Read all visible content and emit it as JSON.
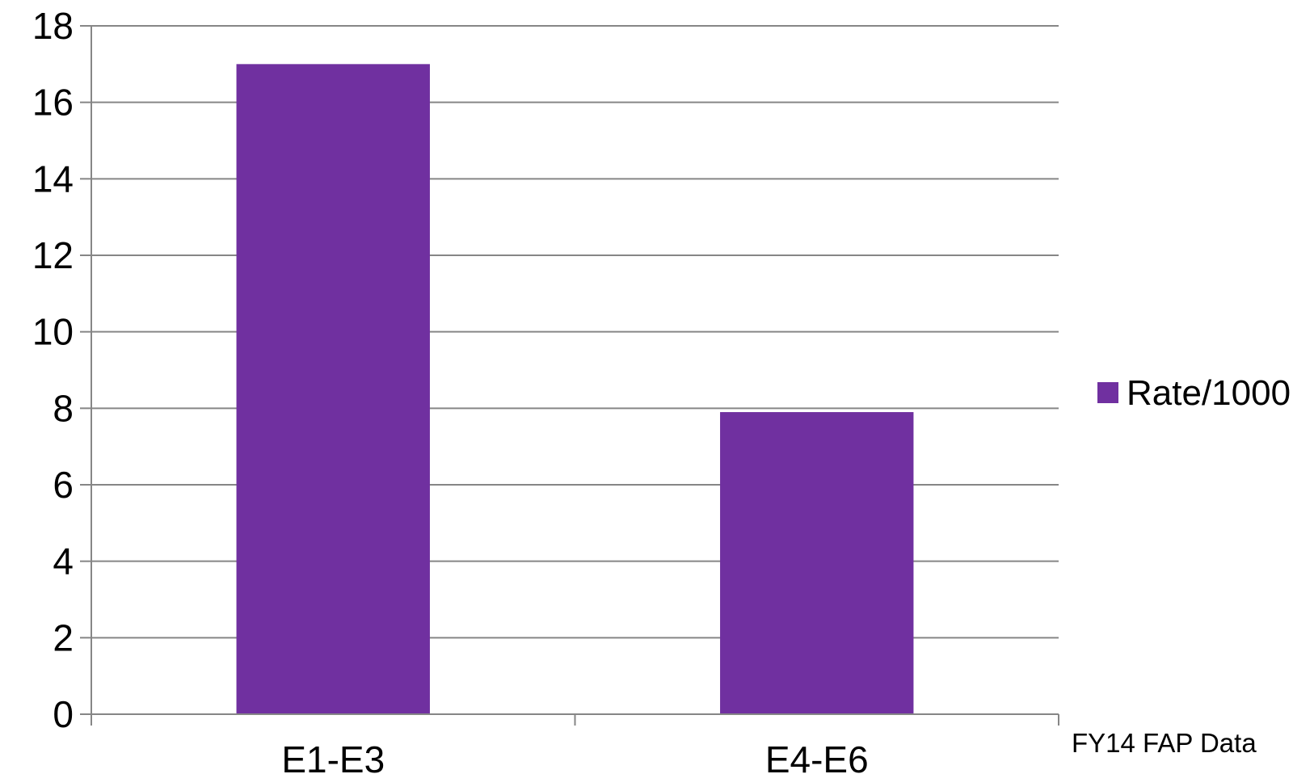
{
  "chart_data": {
    "type": "bar",
    "categories": [
      "E1-E3",
      "E4-E6"
    ],
    "series": [
      {
        "name": "Rate/1000",
        "values": [
          17,
          7.9
        ]
      }
    ],
    "ylim": [
      0,
      18
    ],
    "yticks": [
      0,
      2,
      4,
      6,
      8,
      10,
      12,
      14,
      16,
      18
    ],
    "grid": true,
    "legend_position": "right",
    "bar_color": "#7030a0",
    "gridline_color": "#868686",
    "source_note": "FY14 FAP Data"
  }
}
